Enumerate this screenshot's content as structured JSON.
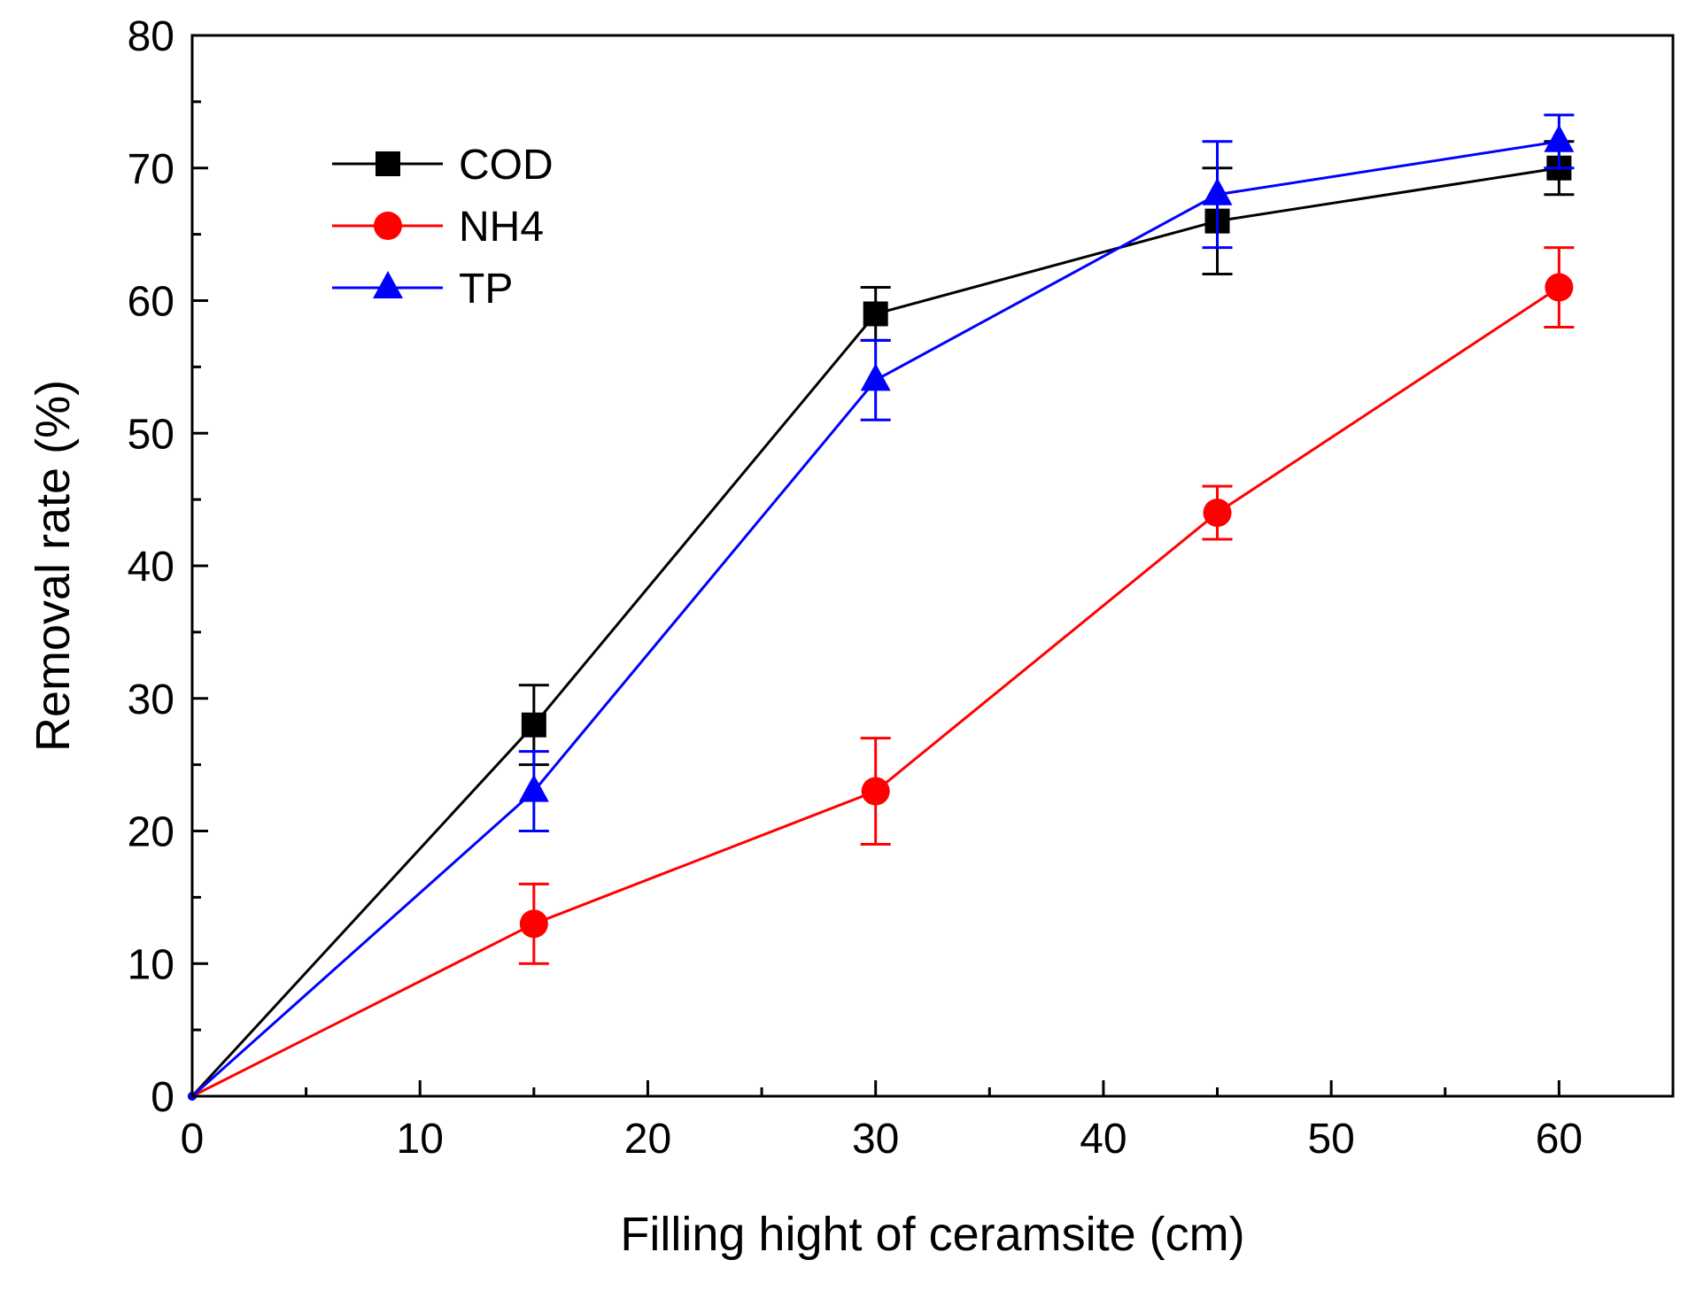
{
  "chart_data": {
    "type": "line",
    "title": "",
    "xlabel": "Filling hight of ceramsite (cm)",
    "ylabel": "Removal rate (%)",
    "xlim": [
      0,
      65
    ],
    "ylim": [
      0,
      80
    ],
    "x_major_ticks": [
      0,
      10,
      20,
      30,
      40,
      50,
      60
    ],
    "x_minor_ticks": [
      5,
      15,
      25,
      35,
      45,
      55
    ],
    "y_major_ticks": [
      0,
      10,
      20,
      30,
      40,
      50,
      60,
      70,
      80
    ],
    "y_minor_ticks": [
      5,
      15,
      25,
      35,
      45,
      55,
      65,
      75
    ],
    "x_tick_labels": [
      "0",
      "10",
      "20",
      "30",
      "40",
      "50",
      "60"
    ],
    "y_tick_labels": [
      "0",
      "10",
      "20",
      "30",
      "40",
      "50",
      "60",
      "70",
      "80"
    ],
    "grid": false,
    "legend_position": "top-left",
    "x": [
      0,
      15,
      30,
      45,
      60
    ],
    "series": [
      {
        "name": "COD",
        "color": "#000000",
        "marker": "square",
        "values": [
          0,
          28,
          59,
          66,
          70
        ],
        "errors": [
          0,
          3,
          2,
          4,
          2
        ]
      },
      {
        "name": "NH4",
        "color": "#ff0000",
        "marker": "circle",
        "values": [
          0,
          13,
          23,
          44,
          61
        ],
        "errors": [
          0,
          3,
          4,
          2,
          3
        ]
      },
      {
        "name": "TP",
        "color": "#0000ff",
        "marker": "triangle",
        "values": [
          0,
          23,
          54,
          68,
          72
        ],
        "errors": [
          0,
          3,
          3,
          4,
          2
        ]
      }
    ]
  }
}
